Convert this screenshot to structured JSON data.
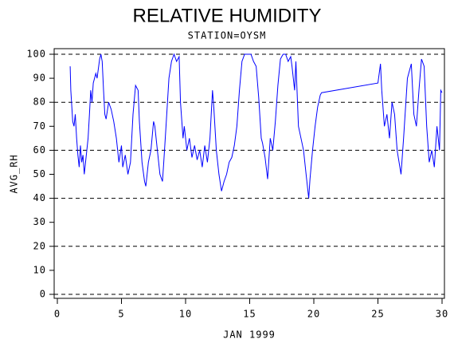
{
  "chart_data": {
    "type": "line",
    "title": "RELATIVE HUMIDITY",
    "subtitle": "STATION=OYSM",
    "x_label": "JAN 1999",
    "y_label": "AVG_RH",
    "xlim": [
      0,
      30
    ],
    "xticks": [
      0,
      5,
      10,
      15,
      20,
      25,
      30
    ],
    "ylim": [
      0,
      100
    ],
    "yticks": [
      0,
      10,
      20,
      30,
      40,
      50,
      60,
      70,
      80,
      90,
      100
    ],
    "grid_lines": [
      0,
      20,
      40,
      60,
      80,
      100
    ],
    "series": [
      {
        "color": "#0000ff",
        "x": [
          1.0,
          1.05,
          1.2,
          1.3,
          1.4,
          1.5,
          1.6,
          1.7,
          1.8,
          1.9,
          2.0,
          2.1,
          2.2,
          2.4,
          2.5,
          2.6,
          2.7,
          2.8,
          3.0,
          3.1,
          3.3,
          3.4,
          3.5,
          3.6,
          3.7,
          3.8,
          4.0,
          4.2,
          4.4,
          4.6,
          4.8,
          5.0,
          5.1,
          5.3,
          5.5,
          5.7,
          5.9,
          6.1,
          6.3,
          6.4,
          6.6,
          6.8,
          6.9,
          7.1,
          7.3,
          7.5,
          7.6,
          7.8,
          8.0,
          8.2,
          8.3,
          8.5,
          8.7,
          8.9,
          9.1,
          9.3,
          9.5,
          9.6,
          9.8,
          9.9,
          10.1,
          10.3,
          10.5,
          10.7,
          10.9,
          11.1,
          11.3,
          11.5,
          11.7,
          11.9,
          12.1,
          12.2,
          12.4,
          12.6,
          12.8,
          13.0,
          13.2,
          13.4,
          13.6,
          13.8,
          14.0,
          14.2,
          14.4,
          14.6,
          14.8,
          15.1,
          15.3,
          15.5,
          15.7,
          15.9,
          16.0,
          16.2,
          16.4,
          16.6,
          16.8,
          17.0,
          17.2,
          17.4,
          17.6,
          17.8,
          18.0,
          18.2,
          18.3,
          18.5,
          18.6,
          18.8,
          19.0,
          19.2,
          19.4,
          19.6,
          19.7,
          19.9,
          20.1,
          20.3,
          20.5,
          20.6,
          25.0,
          25.2,
          25.3,
          25.5,
          25.7,
          25.9,
          26.1,
          26.3,
          26.5,
          26.8,
          27.0,
          27.3,
          27.6,
          27.8,
          28.0,
          28.2,
          28.4,
          28.6,
          28.8,
          29.0,
          29.2,
          29.4,
          29.6,
          29.8,
          29.9,
          30.0
        ],
        "values": [
          95,
          85,
          72,
          70,
          75,
          65,
          58,
          53,
          62,
          55,
          58,
          50,
          55,
          65,
          75,
          85,
          80,
          88,
          92,
          90,
          98,
          100,
          97,
          85,
          75,
          73,
          80,
          77,
          72,
          65,
          55,
          62,
          53,
          58,
          50,
          55,
          75,
          87,
          85,
          72,
          55,
          47,
          45,
          55,
          60,
          72,
          70,
          60,
          50,
          47,
          55,
          72,
          90,
          97,
          100,
          97,
          99,
          80,
          65,
          70,
          60,
          65,
          57,
          62,
          56,
          60,
          53,
          62,
          55,
          65,
          85,
          78,
          60,
          50,
          43,
          47,
          50,
          55,
          57,
          62,
          70,
          85,
          97,
          100,
          100,
          100,
          97,
          95,
          82,
          65,
          63,
          57,
          48,
          65,
          60,
          72,
          87,
          98,
          100,
          100,
          97,
          99,
          95,
          85,
          97,
          70,
          65,
          60,
          50,
          40,
          48,
          60,
          70,
          78,
          83,
          84,
          88,
          96,
          85,
          70,
          75,
          65,
          80,
          75,
          60,
          50,
          65,
          90,
          96,
          75,
          70,
          85,
          98,
          95,
          70,
          55,
          60,
          53,
          70,
          60,
          85,
          84
        ]
      }
    ]
  }
}
